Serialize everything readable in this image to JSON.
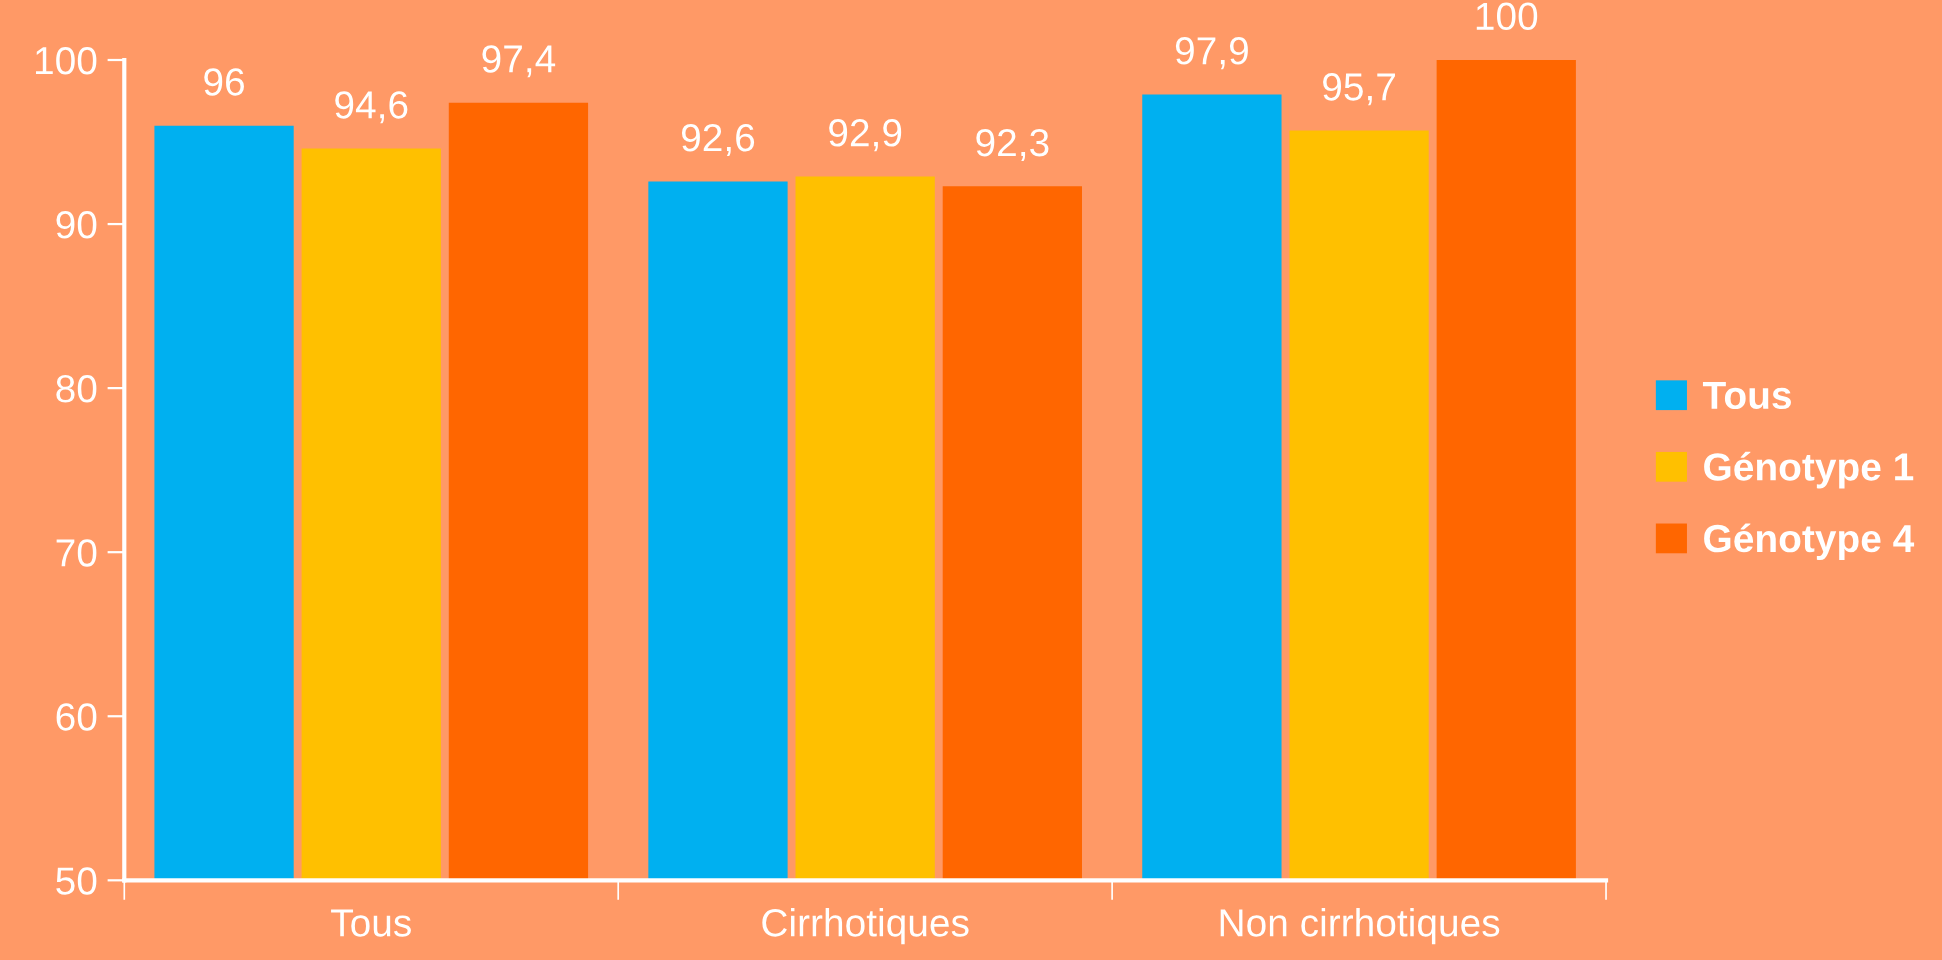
{
  "chart_data": {
    "type": "bar",
    "categories": [
      "Tous",
      "Cirrhotiques",
      "Non cirrhotiques"
    ],
    "series": [
      {
        "name": "Tous",
        "color": "#00b0f0",
        "values": [
          96,
          92.6,
          97.9
        ],
        "value_labels": [
          "96",
          "92,6",
          "97,9"
        ]
      },
      {
        "name": "Génotype 1",
        "color": "#ffc000",
        "values": [
          94.6,
          92.9,
          95.7
        ],
        "value_labels": [
          "94,6",
          "92,9",
          "95,7"
        ]
      },
      {
        "name": "Génotype 4",
        "color": "#ff6600",
        "values": [
          97.4,
          92.3,
          100
        ],
        "value_labels": [
          "97,4",
          "92,3",
          "100"
        ]
      }
    ],
    "ylim": [
      50,
      100
    ],
    "yticks": [
      50,
      60,
      70,
      80,
      90,
      100
    ],
    "grid": false,
    "legend": "right"
  }
}
